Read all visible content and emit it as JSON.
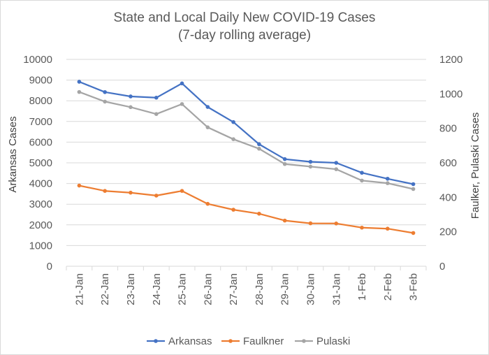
{
  "chart_data": {
    "type": "line",
    "title": "State and Local Daily New COVID-19 Cases",
    "subtitle": "(7-day rolling average)",
    "ylabel": "Arkansas Cases",
    "y2label": "Faulker, Pulaski Cases",
    "ylim": [
      0,
      10000
    ],
    "y2lim": [
      0,
      1200
    ],
    "yticks": [
      "0",
      "1000",
      "2000",
      "3000",
      "4000",
      "5000",
      "6000",
      "7000",
      "8000",
      "9000",
      "10000"
    ],
    "y2ticks": [
      "0",
      "200",
      "400",
      "600",
      "800",
      "1000",
      "1200"
    ],
    "categories": [
      "21-Jan",
      "22-Jan",
      "23-Jan",
      "24-Jan",
      "25-Jan",
      "26-Jan",
      "27-Jan",
      "28-Jan",
      "29-Jan",
      "30-Jan",
      "31-Jan",
      "1-Feb",
      "2-Feb",
      "3-Feb"
    ],
    "grid": true,
    "legend_position": "bottom",
    "series": [
      {
        "name": "Arkansas",
        "axis": "left",
        "color": "#4472c4",
        "values": [
          8920,
          8420,
          8210,
          8150,
          8840,
          7700,
          6970,
          5900,
          5180,
          5050,
          5000,
          4520,
          4230,
          3970
        ]
      },
      {
        "name": "Faulkner",
        "axis": "right",
        "color": "#ed7d31",
        "values": [
          468,
          437,
          427,
          410,
          437,
          362,
          328,
          305,
          265,
          249,
          248,
          224,
          218,
          193
        ]
      },
      {
        "name": "Pulaski",
        "axis": "right",
        "color": "#a5a5a5",
        "values": [
          1011,
          955,
          923,
          883,
          941,
          806,
          737,
          682,
          593,
          578,
          563,
          497,
          482,
          448
        ]
      }
    ]
  }
}
